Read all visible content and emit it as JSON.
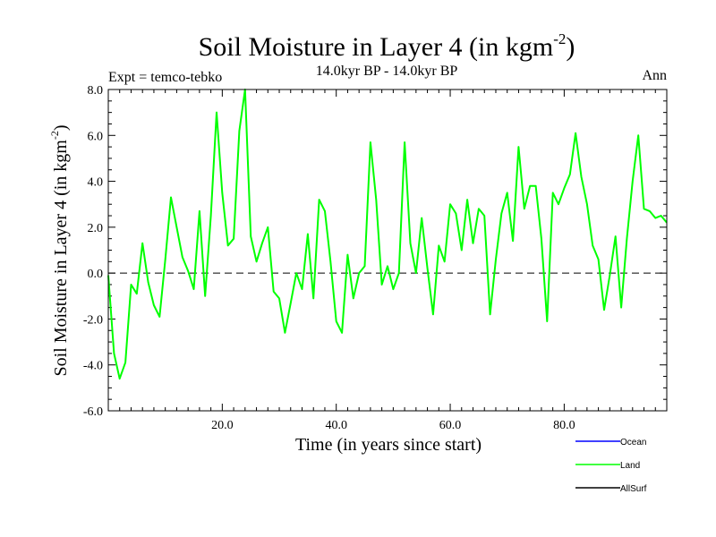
{
  "chart_data": {
    "type": "line",
    "title": "Soil Moisture in Layer 4 (in kgm",
    "title_sup": "-2",
    "title_close": ")",
    "subtitle": "14.0kyr BP - 14.0kyr BP",
    "left_label": "Expt = temco-tebko",
    "right_label": "Ann",
    "xlabel": "Time (in years since start)",
    "ylabel": "Soil Moisture in Layer 4 (in kgm",
    "ylabel_sup": "-2",
    "ylabel_close": ")",
    "xlim": [
      0,
      98
    ],
    "ylim": [
      -6.0,
      8.0
    ],
    "x_ticks": [
      20,
      40,
      60,
      80
    ],
    "x_tick_labels": [
      "20.0",
      "40.0",
      "60.0",
      "80.0"
    ],
    "y_ticks": [
      -6,
      -4,
      -2,
      0,
      2,
      4,
      6,
      8
    ],
    "y_tick_labels": [
      "-6.0",
      "-4.0",
      "-2.0",
      "0.0",
      "2.0",
      "4.0",
      "6.0",
      "8.0"
    ],
    "reference_line": 0,
    "legend": [
      {
        "name": "Ocean",
        "color": "#0000ff"
      },
      {
        "name": "Land",
        "color": "#00ff00"
      },
      {
        "name": "AllSurf",
        "color": "#000000"
      }
    ],
    "series": [
      {
        "name": "Land",
        "color": "#00ff00",
        "x": [
          0,
          1,
          2,
          3,
          4,
          5,
          6,
          7,
          8,
          9,
          10,
          11,
          12,
          13,
          14,
          15,
          16,
          17,
          18,
          19,
          20,
          21,
          22,
          23,
          24,
          25,
          26,
          27,
          28,
          29,
          30,
          31,
          32,
          33,
          34,
          35,
          36,
          37,
          38,
          39,
          40,
          41,
          42,
          43,
          44,
          45,
          46,
          47,
          48,
          49,
          50,
          51,
          52,
          53,
          54,
          55,
          56,
          57,
          58,
          59,
          60,
          61,
          62,
          63,
          64,
          65,
          66,
          67,
          68,
          69,
          70,
          71,
          72,
          73,
          74,
          75,
          76,
          77,
          78,
          79,
          80,
          81,
          82,
          83,
          84,
          85,
          86,
          87,
          88,
          89,
          90,
          91,
          92,
          93,
          94,
          95,
          96,
          97,
          98
        ],
        "values": [
          -0.1,
          -3.5,
          -4.6,
          -3.9,
          -0.5,
          -0.9,
          1.3,
          -0.4,
          -1.4,
          -1.9,
          0.6,
          3.3,
          2.0,
          0.7,
          0.1,
          -0.7,
          2.7,
          -1.0,
          2.5,
          7.0,
          3.5,
          1.2,
          1.5,
          6.2,
          8.0,
          1.6,
          0.5,
          1.3,
          2.0,
          -0.8,
          -1.1,
          -2.6,
          -1.3,
          0.0,
          -0.7,
          1.7,
          -1.1,
          3.2,
          2.7,
          0.5,
          -2.1,
          -2.6,
          0.8,
          -1.1,
          0.0,
          0.3,
          5.7,
          3.2,
          -0.5,
          0.3,
          -0.7,
          0.0,
          5.7,
          1.3,
          0.0,
          2.4,
          0.2,
          -1.8,
          1.2,
          0.5,
          3.0,
          2.6,
          1.0,
          3.2,
          1.3,
          2.8,
          2.5,
          -1.8,
          0.6,
          2.6,
          3.5,
          1.4,
          5.5,
          2.8,
          3.8,
          3.8,
          1.5,
          -2.1,
          3.5,
          3.0,
          3.7,
          4.3,
          6.1,
          4.2,
          3.0,
          1.2,
          0.6,
          -1.6,
          -0.1,
          1.6,
          -1.5,
          1.5,
          4.0,
          6.0,
          2.8,
          2.7,
          2.4,
          2.5,
          2.2
        ]
      }
    ]
  }
}
